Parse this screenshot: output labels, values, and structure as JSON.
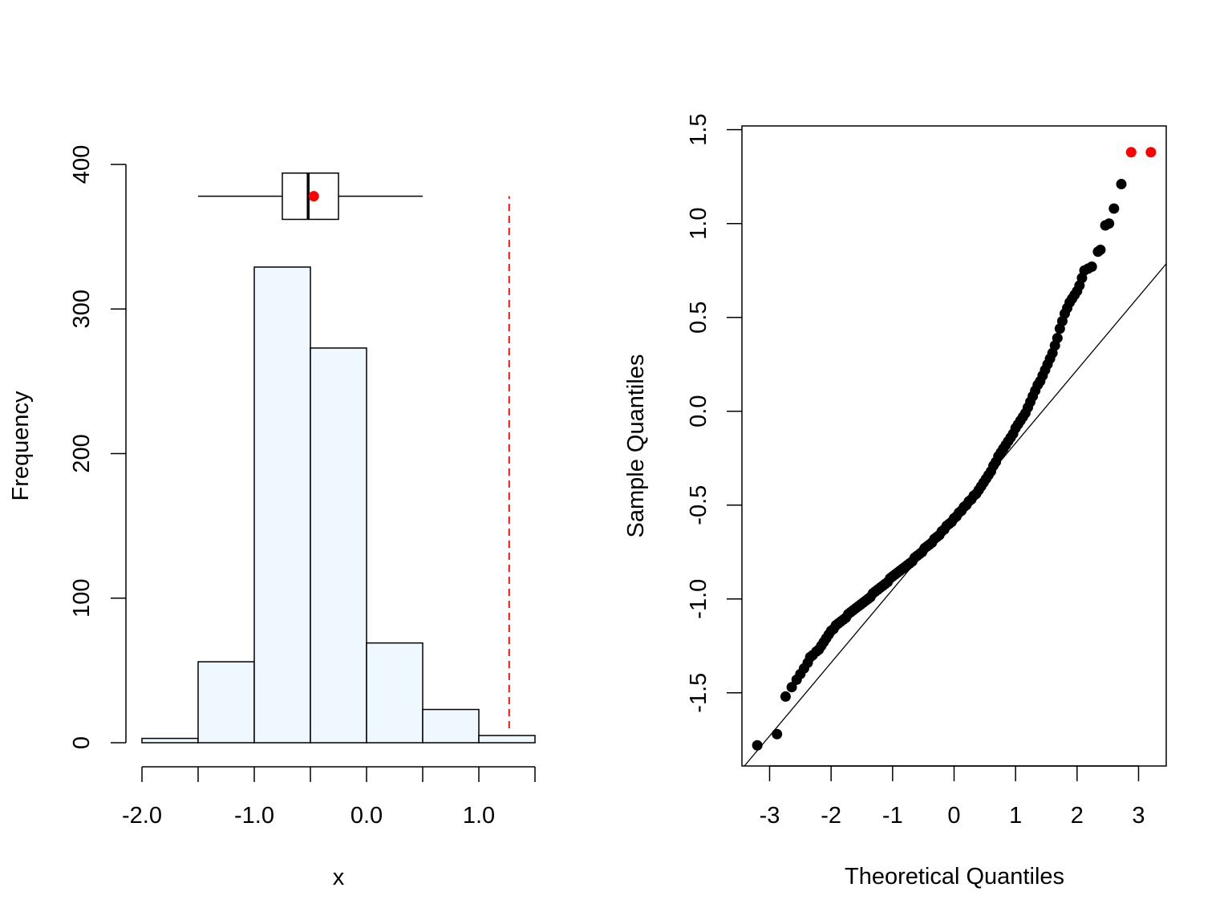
{
  "chart_data": [
    {
      "type": "bar",
      "subtype": "histogram_with_boxplot",
      "title": "",
      "xlabel": "x",
      "ylabel": "Frequency",
      "xlim": [
        -2.0,
        1.5
      ],
      "ylim": [
        0,
        400
      ],
      "x_ticks": [
        -2.0,
        -1.5,
        -1.0,
        -0.5,
        0.0,
        0.5,
        1.0,
        1.5
      ],
      "x_tick_labels": [
        "-2.0",
        "-1.0",
        "0.0",
        "1.0"
      ],
      "x_tick_label_values": [
        -2.0,
        -1.0,
        0.0,
        1.0
      ],
      "y_ticks": [
        0,
        100,
        200,
        300,
        400
      ],
      "y_tick_labels": [
        "0",
        "100",
        "200",
        "300",
        "400"
      ],
      "bins": [
        {
          "from": -2.0,
          "to": -1.5,
          "value": 3
        },
        {
          "from": -1.5,
          "to": -1.0,
          "value": 56
        },
        {
          "from": -1.0,
          "to": -0.5,
          "value": 329
        },
        {
          "from": -0.5,
          "to": 0.0,
          "value": 273
        },
        {
          "from": 0.0,
          "to": 0.5,
          "value": 69
        },
        {
          "from": 0.5,
          "to": 1.0,
          "value": 23
        },
        {
          "from": 1.0,
          "to": 1.5,
          "value": 5
        }
      ],
      "bar_fill": "#f0f8ff",
      "boxplot": {
        "min": -1.5,
        "q1": -0.75,
        "median": -0.52,
        "q3": -0.25,
        "max": 0.5,
        "mean": -0.47,
        "level": 378,
        "box_half_height": 16,
        "mean_color": "#ff0000"
      },
      "reference_line": {
        "x": 1.27,
        "from": 10,
        "to": 378,
        "color": "#ff0000",
        "style": "dashed"
      },
      "grid": false
    },
    {
      "type": "scatter",
      "subtype": "qq_plot",
      "title": "",
      "xlabel": "Theoretical Quantiles",
      "ylabel": "Sample Quantiles",
      "xlim": [
        -3.45,
        3.45
      ],
      "ylim": [
        -1.89,
        1.52
      ],
      "x_ticks": [
        -3,
        -2,
        -1,
        0,
        1,
        2,
        3
      ],
      "x_tick_labels": [
        "-3",
        "-2",
        "-1",
        "0",
        "1",
        "2",
        "3"
      ],
      "y_ticks": [
        -1.5,
        -1.0,
        -0.5,
        0.0,
        0.5,
        1.0,
        1.5
      ],
      "y_tick_labels": [
        "-1.5",
        "-1.0",
        "-0.5",
        "0.0",
        "0.5",
        "1.0",
        "1.5"
      ],
      "reference_line": {
        "slope": 0.39,
        "intercept": -0.56
      },
      "points": [
        [
          -3.2,
          -1.78
        ],
        [
          -2.88,
          -1.72
        ],
        [
          -2.74,
          -1.52
        ],
        [
          -2.64,
          -1.47
        ],
        [
          -2.56,
          -1.43
        ],
        [
          -2.5,
          -1.4
        ],
        [
          -2.44,
          -1.37
        ],
        [
          -2.38,
          -1.34
        ],
        [
          -2.34,
          -1.31
        ],
        [
          -2.3,
          -1.3
        ],
        [
          -2.24,
          -1.28
        ],
        [
          -2.2,
          -1.27
        ],
        [
          -2.16,
          -1.25
        ],
        [
          -2.12,
          -1.23
        ],
        [
          -2.08,
          -1.21
        ],
        [
          -2.04,
          -1.19
        ],
        [
          -2.0,
          -1.17
        ],
        [
          -1.96,
          -1.16
        ],
        [
          -1.92,
          -1.14
        ],
        [
          -1.88,
          -1.13
        ],
        [
          -1.84,
          -1.12
        ],
        [
          -1.8,
          -1.11
        ],
        [
          -1.76,
          -1.1
        ],
        [
          -1.72,
          -1.08
        ],
        [
          -1.68,
          -1.07
        ],
        [
          -1.64,
          -1.06
        ],
        [
          -1.6,
          -1.05
        ],
        [
          -1.56,
          -1.04
        ],
        [
          -1.52,
          -1.03
        ],
        [
          -1.48,
          -1.02
        ],
        [
          -1.44,
          -1.01
        ],
        [
          -1.4,
          -1.0
        ],
        [
          -1.36,
          -0.99
        ],
        [
          -1.32,
          -0.97
        ],
        [
          -1.28,
          -0.96
        ],
        [
          -1.24,
          -0.95
        ],
        [
          -1.2,
          -0.94
        ],
        [
          -1.16,
          -0.93
        ],
        [
          -1.12,
          -0.92
        ],
        [
          -1.08,
          -0.91
        ],
        [
          -1.04,
          -0.89
        ],
        [
          -1.0,
          -0.88
        ],
        [
          -0.96,
          -0.87
        ],
        [
          -0.92,
          -0.86
        ],
        [
          -0.88,
          -0.85
        ],
        [
          -0.84,
          -0.84
        ],
        [
          -0.8,
          -0.83
        ],
        [
          -0.76,
          -0.82
        ],
        [
          -0.72,
          -0.81
        ],
        [
          -0.68,
          -0.8
        ],
        [
          -0.64,
          -0.78
        ],
        [
          -0.6,
          -0.77
        ],
        [
          -0.56,
          -0.76
        ],
        [
          -0.52,
          -0.75
        ],
        [
          -0.48,
          -0.73
        ],
        [
          -0.44,
          -0.72
        ],
        [
          -0.4,
          -0.71
        ],
        [
          -0.36,
          -0.7
        ],
        [
          -0.32,
          -0.68
        ],
        [
          -0.28,
          -0.67
        ],
        [
          -0.24,
          -0.66
        ],
        [
          -0.2,
          -0.64
        ],
        [
          -0.16,
          -0.63
        ],
        [
          -0.12,
          -0.61
        ],
        [
          -0.08,
          -0.6
        ],
        [
          -0.04,
          -0.59
        ],
        [
          0.0,
          -0.57
        ],
        [
          0.04,
          -0.56
        ],
        [
          0.08,
          -0.54
        ],
        [
          0.12,
          -0.53
        ],
        [
          0.16,
          -0.51
        ],
        [
          0.2,
          -0.5
        ],
        [
          0.24,
          -0.48
        ],
        [
          0.28,
          -0.47
        ],
        [
          0.32,
          -0.45
        ],
        [
          0.36,
          -0.44
        ],
        [
          0.4,
          -0.42
        ],
        [
          0.44,
          -0.4
        ],
        [
          0.48,
          -0.38
        ],
        [
          0.52,
          -0.36
        ],
        [
          0.56,
          -0.34
        ],
        [
          0.6,
          -0.32
        ],
        [
          0.64,
          -0.29
        ],
        [
          0.68,
          -0.27
        ],
        [
          0.72,
          -0.24
        ],
        [
          0.76,
          -0.22
        ],
        [
          0.8,
          -0.2
        ],
        [
          0.84,
          -0.18
        ],
        [
          0.88,
          -0.16
        ],
        [
          0.92,
          -0.14
        ],
        [
          0.96,
          -0.12
        ],
        [
          1.0,
          -0.09
        ],
        [
          1.04,
          -0.07
        ],
        [
          1.08,
          -0.05
        ],
        [
          1.12,
          -0.03
        ],
        [
          1.16,
          -0.01
        ],
        [
          1.2,
          0.02
        ],
        [
          1.24,
          0.05
        ],
        [
          1.28,
          0.08
        ],
        [
          1.32,
          0.11
        ],
        [
          1.36,
          0.14
        ],
        [
          1.4,
          0.16
        ],
        [
          1.44,
          0.19
        ],
        [
          1.48,
          0.22
        ],
        [
          1.52,
          0.25
        ],
        [
          1.56,
          0.28
        ],
        [
          1.6,
          0.31
        ],
        [
          1.64,
          0.35
        ],
        [
          1.68,
          0.39
        ],
        [
          1.72,
          0.44
        ],
        [
          1.76,
          0.48
        ],
        [
          1.8,
          0.52
        ],
        [
          1.84,
          0.55
        ],
        [
          1.88,
          0.58
        ],
        [
          1.92,
          0.6
        ],
        [
          1.96,
          0.62
        ],
        [
          2.0,
          0.64
        ],
        [
          2.04,
          0.67
        ],
        [
          2.08,
          0.71
        ],
        [
          2.12,
          0.75
        ],
        [
          2.18,
          0.76
        ],
        [
          2.24,
          0.77
        ],
        [
          2.34,
          0.85
        ],
        [
          2.38,
          0.86
        ],
        [
          2.46,
          0.99
        ],
        [
          2.52,
          1.0
        ],
        [
          2.6,
          1.08
        ],
        [
          2.72,
          1.21
        ],
        [
          2.88,
          1.38
        ],
        [
          3.2,
          1.38
        ]
      ],
      "point_color": "#000000",
      "highlight_points": [
        [
          2.88,
          1.38
        ],
        [
          3.2,
          1.38
        ]
      ],
      "highlight_color": "#ff0000",
      "grid": false
    }
  ]
}
